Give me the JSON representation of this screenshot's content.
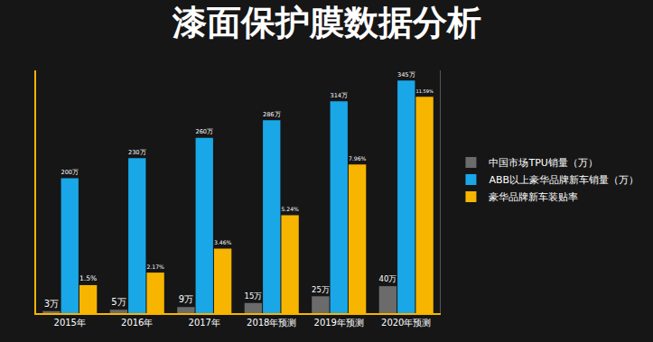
{
  "chart_data": {
    "type": "bar",
    "title": "漆面保护膜数据分析",
    "categories": [
      "2015年",
      "2016年",
      "2017年",
      "2018年预测",
      "2019年预测",
      "2020年预测"
    ],
    "series": [
      {
        "name": "中国市场TPU销量（万）",
        "color": "#6b6b6b",
        "axis": "y",
        "values": [
          3,
          5,
          9,
          15,
          25,
          40
        ],
        "value_labels": [
          "3万",
          "5万",
          "9万",
          "15万",
          "25万",
          "40万"
        ]
      },
      {
        "name": "ABB以上豪华品牌新车销量（万）",
        "color": "#1aa7e8",
        "axis": "y",
        "values": [
          200,
          230,
          260,
          286,
          314,
          345
        ],
        "value_labels": [
          "200万",
          "230万",
          "260万",
          "286万",
          "314万",
          "345万"
        ]
      },
      {
        "name": "豪华品牌新车装贴率",
        "color": "#f7b500",
        "axis": "y2",
        "values": [
          1.5,
          2.17,
          3.46,
          5.24,
          7.96,
          11.59
        ],
        "value_labels": [
          "1.5%",
          "2.17%",
          "3.46%",
          "5.24%",
          "7.96%",
          "11.59%"
        ]
      }
    ],
    "ylim": [
      0,
      360
    ],
    "y2lim": [
      0,
      13
    ],
    "tick_labels": "x",
    "data_labels": true,
    "grid": false,
    "legend": "right"
  }
}
